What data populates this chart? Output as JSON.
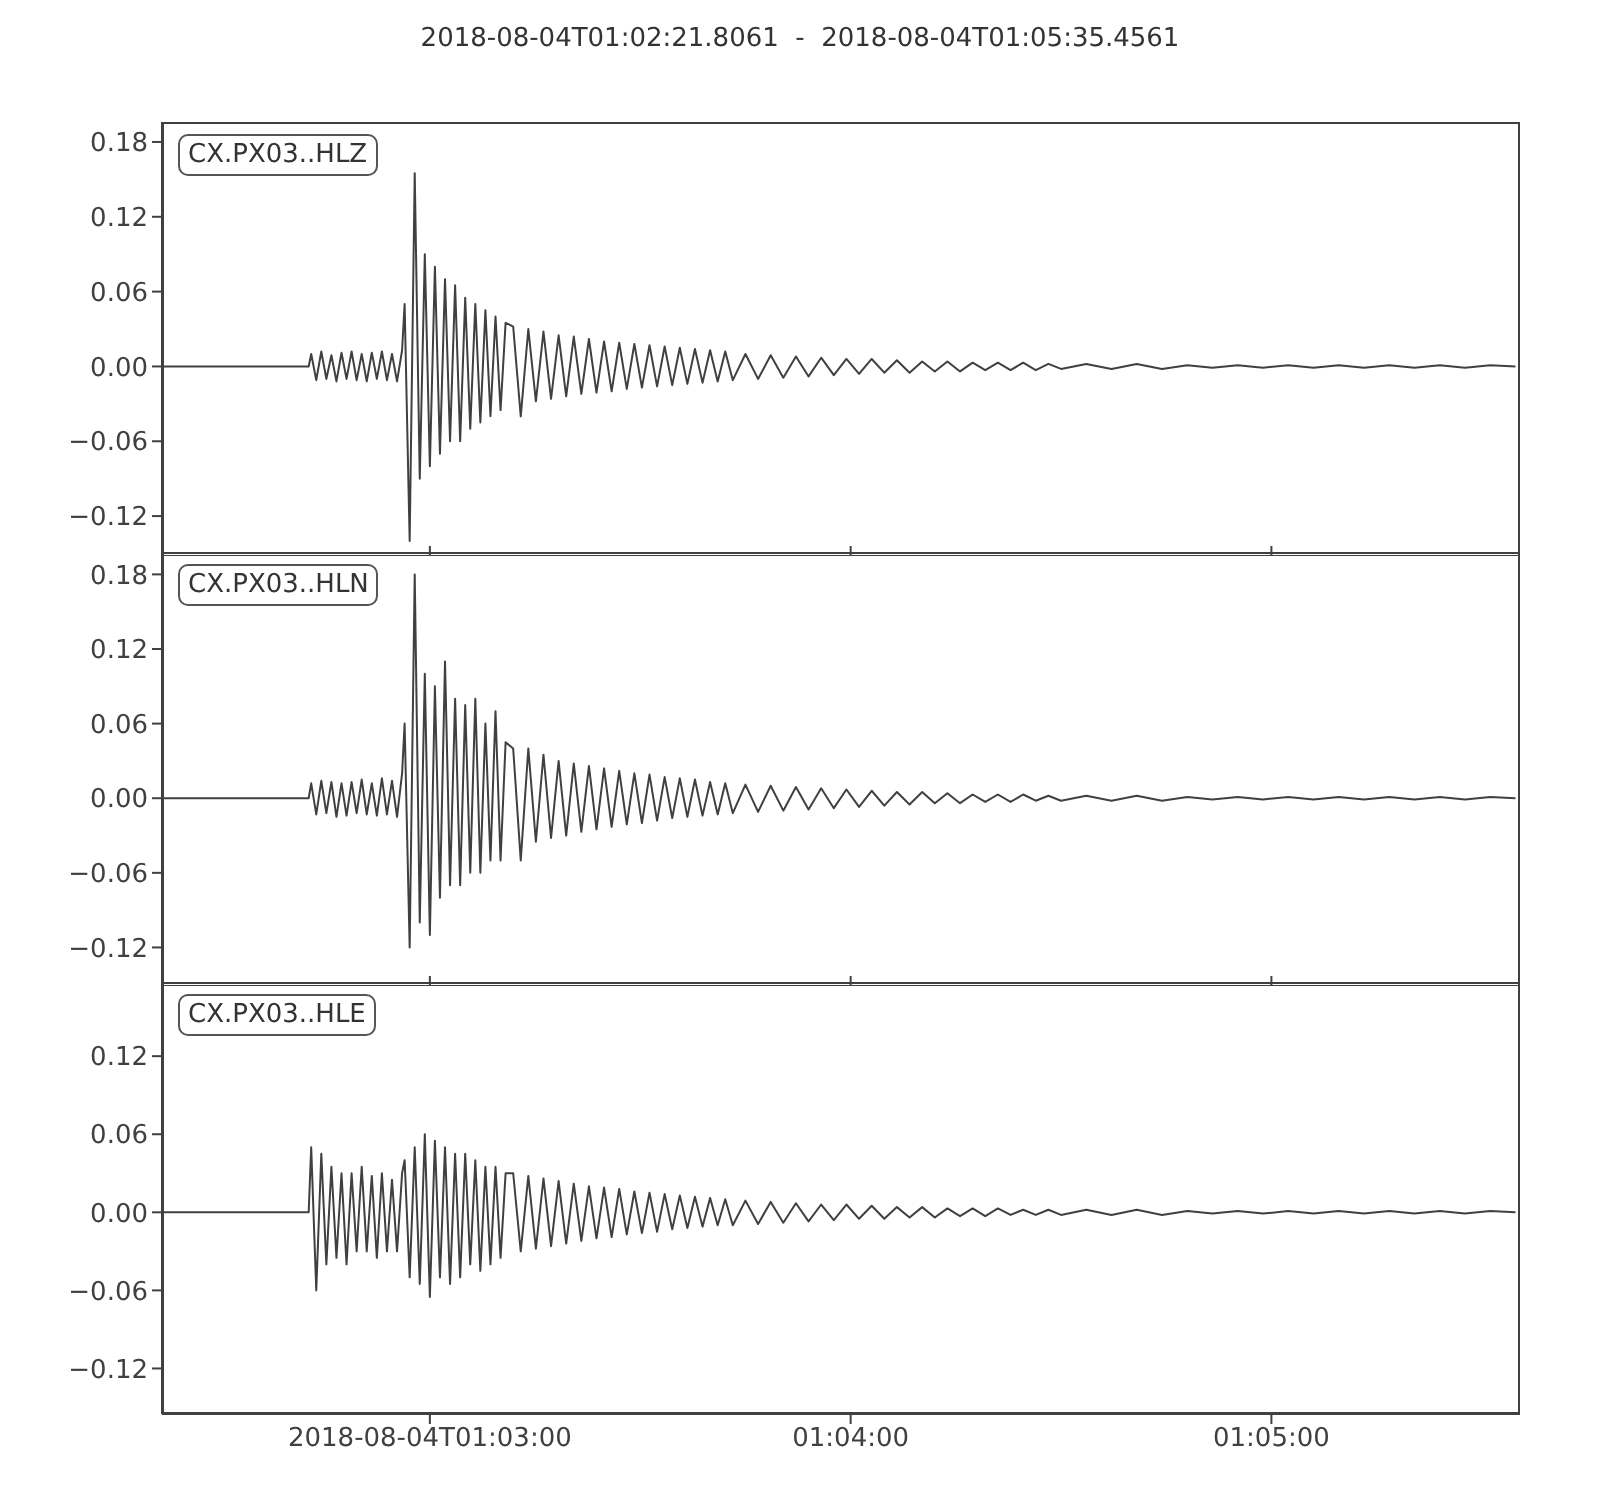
{
  "chart_data": [
    {
      "type": "line",
      "title": "2018-08-04T01:02:21.8061  -  2018-08-04T01:05:35.4561",
      "annotations": [
        "CX.PX03..HLZ"
      ],
      "color": "#404040",
      "tick_labels": "y",
      "xlim": [
        1.03939,
        1.09318
      ],
      "xticks": [
        {
          "value": 1.05,
          "label": null
        },
        {
          "value": 1.066667,
          "label": null
        },
        {
          "value": 1.083333,
          "label": null
        }
      ],
      "ylim": [
        -0.152,
        0.196
      ],
      "yticks": [
        {
          "value": -0.12,
          "label": "−0.12"
        },
        {
          "value": -0.06,
          "label": "−0.06"
        },
        {
          "value": 0,
          "label": "0.00"
        },
        {
          "value": 0.06,
          "label": "0.06"
        },
        {
          "value": 0.12,
          "label": "0.12"
        },
        {
          "value": 0.18,
          "label": "0.18"
        }
      ],
      "x": [
        1.0394,
        1.0452,
        1.0453,
        1.0455,
        1.0457,
        1.0459,
        1.0461,
        1.0463,
        1.0465,
        1.0467,
        1.0469,
        1.0471,
        1.0473,
        1.0475,
        1.0477,
        1.0479,
        1.0481,
        1.0483,
        1.0485,
        1.0487,
        1.0489,
        1.049,
        1.0492,
        1.0494,
        1.0496,
        1.0498,
        1.05,
        1.0502,
        1.0504,
        1.0506,
        1.0508,
        1.051,
        1.0512,
        1.0514,
        1.0516,
        1.0518,
        1.052,
        1.0522,
        1.0524,
        1.0526,
        1.0528,
        1.053,
        1.0533,
        1.0536,
        1.0539,
        1.0542,
        1.0545,
        1.0548,
        1.0551,
        1.0554,
        1.0557,
        1.056,
        1.0563,
        1.0566,
        1.0569,
        1.0572,
        1.0575,
        1.0578,
        1.0581,
        1.0584,
        1.0587,
        1.059,
        1.0593,
        1.0596,
        1.0599,
        1.0602,
        1.0605,
        1.0608,
        1.0611,
        1.0614,
        1.0617,
        1.062,
        1.0625,
        1.063,
        1.0635,
        1.064,
        1.0645,
        1.065,
        1.0655,
        1.066,
        1.0665,
        1.067,
        1.0675,
        1.068,
        1.0685,
        1.069,
        1.0695,
        1.07,
        1.0705,
        1.071,
        1.0715,
        1.072,
        1.0725,
        1.073,
        1.0735,
        1.074,
        1.0745,
        1.075,
        1.076,
        1.077,
        1.078,
        1.079,
        1.08,
        1.081,
        1.082,
        1.083,
        1.084,
        1.085,
        1.086,
        1.087,
        1.088,
        1.089,
        1.09,
        1.091,
        1.092,
        1.093
      ],
      "values": [
        0,
        0,
        0.01,
        -0.011,
        0.012,
        -0.01,
        0.009,
        -0.012,
        0.011,
        -0.01,
        0.012,
        -0.011,
        0.01,
        -0.012,
        0.011,
        -0.01,
        0.012,
        -0.011,
        0.01,
        -0.012,
        0.013,
        0.05,
        -0.14,
        0.155,
        -0.09,
        0.09,
        -0.08,
        0.08,
        -0.07,
        0.07,
        -0.06,
        0.065,
        -0.06,
        0.055,
        -0.05,
        0.05,
        -0.045,
        0.045,
        -0.04,
        0.04,
        -0.035,
        0.035,
        0.032,
        -0.04,
        0.03,
        -0.028,
        0.028,
        -0.026,
        0.025,
        -0.024,
        0.024,
        -0.022,
        0.022,
        -0.021,
        0.02,
        -0.02,
        0.019,
        -0.018,
        0.018,
        -0.017,
        0.017,
        -0.016,
        0.016,
        -0.015,
        0.015,
        -0.014,
        0.014,
        -0.013,
        0.013,
        -0.012,
        0.012,
        -0.011,
        0.01,
        -0.01,
        0.009,
        -0.009,
        0.008,
        -0.008,
        0.007,
        -0.007,
        0.006,
        -0.006,
        0.006,
        -0.005,
        0.005,
        -0.005,
        0.004,
        -0.004,
        0.004,
        -0.004,
        0.003,
        -0.003,
        0.003,
        -0.003,
        0.003,
        -0.003,
        0.002,
        -0.002,
        0.002,
        -0.002,
        0.002,
        -0.002,
        0.001,
        -0.001,
        0.001,
        -0.001,
        0.001,
        -0.001,
        0.001,
        -0.001,
        0.001,
        -0.001,
        0.001,
        -0.001,
        0.001,
        0
      ]
    },
    {
      "type": "line",
      "annotations": [
        "CX.PX03..HLN"
      ],
      "color": "#404040",
      "tick_labels": "y",
      "xlim": [
        1.03939,
        1.09318
      ],
      "xticks": [
        {
          "value": 1.05,
          "label": null
        },
        {
          "value": 1.066667,
          "label": null
        },
        {
          "value": 1.083333,
          "label": null
        }
      ],
      "ylim": [
        -0.151,
        0.198
      ],
      "yticks": [
        {
          "value": -0.12,
          "label": "−0.12"
        },
        {
          "value": -0.06,
          "label": "−0.06"
        },
        {
          "value": 0,
          "label": "0.00"
        },
        {
          "value": 0.06,
          "label": "0.06"
        },
        {
          "value": 0.12,
          "label": "0.12"
        },
        {
          "value": 0.18,
          "label": "0.18"
        }
      ],
      "x": [
        1.0394,
        1.0452,
        1.0453,
        1.0455,
        1.0457,
        1.0459,
        1.0461,
        1.0463,
        1.0465,
        1.0467,
        1.0469,
        1.0471,
        1.0473,
        1.0475,
        1.0477,
        1.0479,
        1.0481,
        1.0483,
        1.0485,
        1.0487,
        1.0489,
        1.049,
        1.0492,
        1.0494,
        1.0496,
        1.0498,
        1.05,
        1.0502,
        1.0504,
        1.0506,
        1.0508,
        1.051,
        1.0512,
        1.0514,
        1.0516,
        1.0518,
        1.052,
        1.0522,
        1.0524,
        1.0526,
        1.0528,
        1.053,
        1.0533,
        1.0536,
        1.0539,
        1.0542,
        1.0545,
        1.0548,
        1.0551,
        1.0554,
        1.0557,
        1.056,
        1.0563,
        1.0566,
        1.0569,
        1.0572,
        1.0575,
        1.0578,
        1.0581,
        1.0584,
        1.0587,
        1.059,
        1.0593,
        1.0596,
        1.0599,
        1.0602,
        1.0605,
        1.0608,
        1.0611,
        1.0614,
        1.0617,
        1.062,
        1.0625,
        1.063,
        1.0635,
        1.064,
        1.0645,
        1.065,
        1.0655,
        1.066,
        1.0665,
        1.067,
        1.0675,
        1.068,
        1.0685,
        1.069,
        1.0695,
        1.07,
        1.0705,
        1.071,
        1.0715,
        1.072,
        1.0725,
        1.073,
        1.0735,
        1.074,
        1.0745,
        1.075,
        1.076,
        1.077,
        1.078,
        1.079,
        1.08,
        1.081,
        1.082,
        1.083,
        1.084,
        1.085,
        1.086,
        1.087,
        1.088,
        1.089,
        1.09,
        1.091,
        1.092,
        1.093
      ],
      "values": [
        0,
        0,
        0.012,
        -0.013,
        0.014,
        -0.012,
        0.013,
        -0.015,
        0.012,
        -0.014,
        0.013,
        -0.012,
        0.015,
        -0.013,
        0.012,
        -0.014,
        0.016,
        -0.013,
        0.014,
        -0.015,
        0.02,
        0.06,
        -0.12,
        0.18,
        -0.1,
        0.1,
        -0.11,
        0.09,
        -0.08,
        0.11,
        -0.07,
        0.08,
        -0.07,
        0.075,
        -0.06,
        0.08,
        -0.06,
        0.06,
        -0.05,
        0.07,
        -0.05,
        0.045,
        0.04,
        -0.05,
        0.04,
        -0.035,
        0.035,
        -0.032,
        0.03,
        -0.03,
        0.028,
        -0.027,
        0.026,
        -0.025,
        0.024,
        -0.023,
        0.022,
        -0.021,
        0.02,
        -0.02,
        0.019,
        -0.018,
        0.017,
        -0.016,
        0.016,
        -0.015,
        0.015,
        -0.014,
        0.013,
        -0.013,
        0.012,
        -0.012,
        0.011,
        -0.011,
        0.01,
        -0.01,
        0.009,
        -0.009,
        0.008,
        -0.008,
        0.007,
        -0.007,
        0.006,
        -0.006,
        0.005,
        -0.005,
        0.005,
        -0.004,
        0.004,
        -0.004,
        0.003,
        -0.003,
        0.003,
        -0.003,
        0.003,
        -0.002,
        0.002,
        -0.002,
        0.002,
        -0.002,
        0.002,
        -0.002,
        0.001,
        -0.001,
        0.001,
        -0.001,
        0.001,
        -0.001,
        0.001,
        -0.001,
        0.001,
        -0.001,
        0.001,
        -0.001,
        0.001,
        0
      ]
    },
    {
      "type": "line",
      "annotations": [
        "CX.PX03..HLE"
      ],
      "color": "#404040",
      "xlim": [
        1.03939,
        1.09318
      ],
      "xticks": [
        {
          "value": 1.05,
          "label": "2018-08-04T01:03:00"
        },
        {
          "value": 1.066667,
          "label": "01:04:00"
        },
        {
          "value": 1.083333,
          "label": "01:05:00"
        }
      ],
      "ylim": [
        -0.155,
        0.177
      ],
      "yticks": [
        {
          "value": -0.12,
          "label": "−0.12"
        },
        {
          "value": -0.06,
          "label": "−0.06"
        },
        {
          "value": 0,
          "label": "0.00"
        },
        {
          "value": 0.06,
          "label": "0.06"
        },
        {
          "value": 0.12,
          "label": "0.12"
        }
      ],
      "x": [
        1.0394,
        1.0452,
        1.0453,
        1.0455,
        1.0457,
        1.0459,
        1.0461,
        1.0463,
        1.0465,
        1.0467,
        1.0469,
        1.0471,
        1.0473,
        1.0475,
        1.0477,
        1.0479,
        1.0481,
        1.0483,
        1.0485,
        1.0487,
        1.0489,
        1.049,
        1.0492,
        1.0494,
        1.0496,
        1.0498,
        1.05,
        1.0502,
        1.0504,
        1.0506,
        1.0508,
        1.051,
        1.0512,
        1.0514,
        1.0516,
        1.0518,
        1.052,
        1.0522,
        1.0524,
        1.0526,
        1.0528,
        1.053,
        1.0533,
        1.0536,
        1.0539,
        1.0542,
        1.0545,
        1.0548,
        1.0551,
        1.0554,
        1.0557,
        1.056,
        1.0563,
        1.0566,
        1.0569,
        1.0572,
        1.0575,
        1.0578,
        1.0581,
        1.0584,
        1.0587,
        1.059,
        1.0593,
        1.0596,
        1.0599,
        1.0602,
        1.0605,
        1.0608,
        1.0611,
        1.0614,
        1.0617,
        1.062,
        1.0625,
        1.063,
        1.0635,
        1.064,
        1.0645,
        1.065,
        1.0655,
        1.066,
        1.0665,
        1.067,
        1.0675,
        1.068,
        1.0685,
        1.069,
        1.0695,
        1.07,
        1.0705,
        1.071,
        1.0715,
        1.072,
        1.0725,
        1.073,
        1.0735,
        1.074,
        1.0745,
        1.075,
        1.076,
        1.077,
        1.078,
        1.079,
        1.08,
        1.081,
        1.082,
        1.083,
        1.084,
        1.085,
        1.086,
        1.087,
        1.088,
        1.089,
        1.09,
        1.091,
        1.092,
        1.093
      ],
      "values": [
        0,
        0,
        0.05,
        -0.06,
        0.045,
        -0.04,
        0.035,
        -0.035,
        0.03,
        -0.04,
        0.03,
        -0.03,
        0.035,
        -0.03,
        0.028,
        -0.035,
        0.03,
        -0.03,
        0.025,
        -0.03,
        0.03,
        0.04,
        -0.05,
        0.05,
        -0.055,
        0.06,
        -0.065,
        0.055,
        -0.05,
        0.05,
        -0.055,
        0.045,
        -0.05,
        0.045,
        -0.04,
        0.04,
        -0.045,
        0.035,
        -0.04,
        0.035,
        -0.035,
        0.03,
        0.03,
        -0.03,
        0.028,
        -0.028,
        0.026,
        -0.026,
        0.024,
        -0.024,
        0.022,
        -0.022,
        0.02,
        -0.02,
        0.019,
        -0.019,
        0.018,
        -0.017,
        0.016,
        -0.016,
        0.015,
        -0.015,
        0.014,
        -0.013,
        0.013,
        -0.012,
        0.012,
        -0.011,
        0.011,
        -0.01,
        0.01,
        -0.01,
        0.009,
        -0.009,
        0.008,
        -0.008,
        0.007,
        -0.007,
        0.006,
        -0.006,
        0.006,
        -0.005,
        0.005,
        -0.005,
        0.004,
        -0.004,
        0.004,
        -0.004,
        0.003,
        -0.003,
        0.003,
        -0.003,
        0.003,
        -0.002,
        0.002,
        -0.002,
        0.002,
        -0.002,
        0.002,
        -0.002,
        0.002,
        -0.002,
        0.001,
        -0.001,
        0.001,
        -0.001,
        0.001,
        -0.001,
        0.001,
        -0.001,
        0.001,
        -0.001,
        0.001,
        -0.001,
        0.001,
        0
      ]
    }
  ]
}
